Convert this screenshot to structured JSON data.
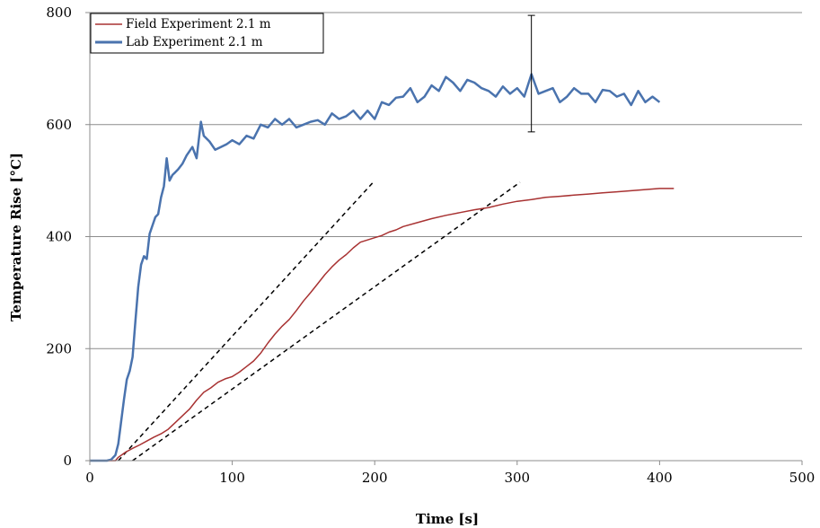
{
  "chart_data": {
    "type": "line",
    "title": "",
    "xlabel": "Time [s]",
    "ylabel": "Temperature Rise [°C]",
    "xlim": [
      0,
      500
    ],
    "ylim": [
      0,
      800
    ],
    "x_ticks": [
      "0",
      "100",
      "200",
      "300",
      "400",
      "500"
    ],
    "y_ticks": [
      "0",
      "200",
      "400",
      "600",
      "800"
    ],
    "grid": "horizontal",
    "legend_position": "top-left",
    "series": [
      {
        "name": "Field Experiment 2.1 m",
        "color": "#a83232",
        "x": [
          0,
          18,
          20,
          25,
          30,
          35,
          40,
          45,
          50,
          55,
          60,
          65,
          70,
          75,
          80,
          85,
          90,
          95,
          100,
          105,
          110,
          115,
          120,
          125,
          130,
          135,
          140,
          145,
          150,
          155,
          160,
          165,
          170,
          175,
          180,
          185,
          190,
          195,
          200,
          205,
          210,
          215,
          220,
          230,
          240,
          250,
          260,
          270,
          280,
          290,
          300,
          310,
          320,
          330,
          340,
          350,
          360,
          370,
          380,
          390,
          400,
          410
        ],
        "y": [
          0,
          0,
          6,
          15,
          22,
          28,
          35,
          42,
          48,
          56,
          68,
          80,
          92,
          108,
          122,
          130,
          140,
          146,
          150,
          158,
          168,
          178,
          192,
          210,
          226,
          240,
          252,
          268,
          285,
          300,
          316,
          332,
          346,
          358,
          368,
          380,
          390,
          394,
          398,
          402,
          408,
          412,
          418,
          425,
          432,
          438,
          443,
          448,
          452,
          458,
          463,
          466,
          470,
          472,
          474,
          476,
          478,
          480,
          482,
          484,
          486,
          486
        ]
      },
      {
        "name": "Lab Experiment 2.1 m",
        "color": "#4a73ae",
        "x": [
          0,
          12,
          15,
          18,
          20,
          22,
          24,
          26,
          28,
          30,
          32,
          34,
          36,
          38,
          40,
          42,
          44,
          46,
          48,
          50,
          52,
          54,
          56,
          58,
          60,
          62,
          65,
          68,
          72,
          75,
          78,
          80,
          84,
          88,
          92,
          96,
          100,
          105,
          110,
          115,
          120,
          125,
          130,
          135,
          140,
          145,
          150,
          155,
          160,
          165,
          170,
          175,
          180,
          185,
          190,
          195,
          200,
          205,
          210,
          215,
          220,
          225,
          230,
          235,
          240,
          245,
          250,
          255,
          260,
          265,
          270,
          275,
          280,
          285,
          290,
          295,
          300,
          305,
          310,
          315,
          320,
          325,
          330,
          335,
          340,
          345,
          350,
          355,
          360,
          365,
          370,
          375,
          380,
          385,
          390,
          395,
          400
        ],
        "y": [
          0,
          0,
          2,
          10,
          30,
          70,
          110,
          145,
          160,
          185,
          250,
          310,
          350,
          365,
          360,
          405,
          420,
          435,
          440,
          470,
          490,
          540,
          500,
          510,
          515,
          520,
          530,
          545,
          560,
          540,
          605,
          580,
          570,
          555,
          560,
          565,
          572,
          565,
          580,
          575,
          600,
          595,
          610,
          600,
          610,
          595,
          600,
          605,
          608,
          600,
          620,
          610,
          615,
          625,
          610,
          625,
          610,
          640,
          635,
          648,
          650,
          665,
          640,
          650,
          670,
          660,
          685,
          675,
          660,
          680,
          675,
          665,
          660,
          650,
          668,
          655,
          665,
          650,
          690,
          655,
          660,
          665,
          640,
          650,
          665,
          655,
          655,
          640,
          662,
          660,
          650,
          655,
          635,
          660,
          640,
          650,
          640
        ]
      }
    ],
    "reference_lines": [
      {
        "style": "dashed",
        "x": [
          20,
          200
        ],
        "y": [
          0,
          500
        ]
      },
      {
        "style": "dashed",
        "x": [
          30,
          302
        ],
        "y": [
          0,
          497
        ]
      }
    ],
    "error_bar": {
      "x": 310,
      "y_low": 587,
      "y_high": 795
    }
  }
}
